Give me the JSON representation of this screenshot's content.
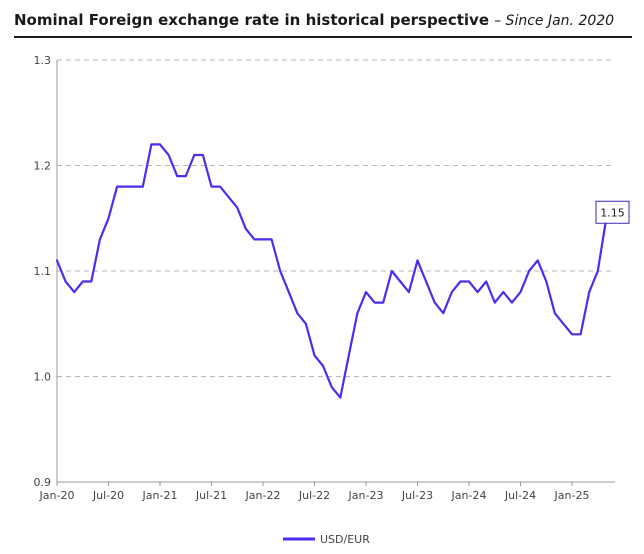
{
  "chart_data": {
    "type": "line",
    "title": "Nominal Foreign exchange rate in historical perspective",
    "subtitle": "– Since Jan. 2020",
    "xlabel": "",
    "ylabel": "",
    "x_ticks": [
      "Jan-20",
      "Jul-20",
      "Jan-21",
      "Jul-21",
      "Jan-22",
      "Jul-22",
      "Jan-23",
      "Jul-23",
      "Jan-24",
      "Jul-24",
      "Jan-25"
    ],
    "ylim": [
      0.9,
      1.3
    ],
    "y_ticks": [
      "0.9",
      "1.0",
      "1.1",
      "1.2",
      "1.3"
    ],
    "grid": "horizontal-dashed",
    "legend_position": "bottom",
    "end_label": "1.15",
    "series": [
      {
        "name": "USD/EUR",
        "color": "#4a2ef0",
        "x": [
          "2020-01",
          "2020-02",
          "2020-03",
          "2020-04",
          "2020-05",
          "2020-06",
          "2020-07",
          "2020-08",
          "2020-09",
          "2020-10",
          "2020-11",
          "2020-12",
          "2021-01",
          "2021-02",
          "2021-03",
          "2021-04",
          "2021-05",
          "2021-06",
          "2021-07",
          "2021-08",
          "2021-09",
          "2021-10",
          "2021-11",
          "2021-12",
          "2022-01",
          "2022-02",
          "2022-03",
          "2022-04",
          "2022-05",
          "2022-06",
          "2022-07",
          "2022-08",
          "2022-09",
          "2022-10",
          "2022-11",
          "2022-12",
          "2023-01",
          "2023-02",
          "2023-03",
          "2023-04",
          "2023-05",
          "2023-06",
          "2023-07",
          "2023-08",
          "2023-09",
          "2023-10",
          "2023-11",
          "2023-12",
          "2024-01",
          "2024-02",
          "2024-03",
          "2024-04",
          "2024-05",
          "2024-06",
          "2024-07",
          "2024-08",
          "2024-09",
          "2024-10",
          "2024-11",
          "2024-12",
          "2025-01",
          "2025-02",
          "2025-03",
          "2025-04",
          "2025-05"
        ],
        "values": [
          1.11,
          1.09,
          1.08,
          1.09,
          1.09,
          1.13,
          1.15,
          1.18,
          1.18,
          1.18,
          1.18,
          1.22,
          1.22,
          1.21,
          1.19,
          1.19,
          1.21,
          1.21,
          1.18,
          1.18,
          1.17,
          1.16,
          1.14,
          1.13,
          1.13,
          1.13,
          1.1,
          1.08,
          1.06,
          1.05,
          1.02,
          1.01,
          0.99,
          0.98,
          1.02,
          1.06,
          1.08,
          1.07,
          1.07,
          1.1,
          1.09,
          1.08,
          1.11,
          1.09,
          1.07,
          1.06,
          1.08,
          1.09,
          1.09,
          1.08,
          1.09,
          1.07,
          1.08,
          1.07,
          1.08,
          1.1,
          1.11,
          1.09,
          1.06,
          1.05,
          1.04,
          1.04,
          1.08,
          1.1,
          1.15
        ]
      }
    ]
  }
}
